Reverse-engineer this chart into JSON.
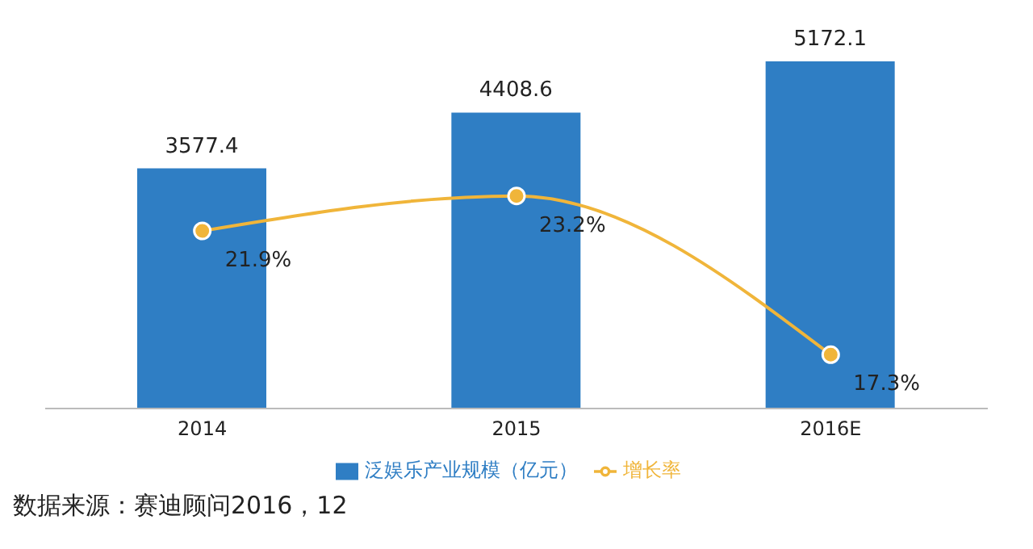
{
  "chart_data": {
    "type": "bar",
    "categories": [
      "2014",
      "2015",
      "2016E"
    ],
    "series": [
      {
        "name": "泛娱乐产业规模（亿元）",
        "color": "#2f7ec4",
        "values": [
          3577.4,
          4408.6,
          5172.1
        ],
        "value_labels": [
          "3577.4",
          "4408.6",
          "5172.1"
        ]
      },
      {
        "name": "增长率",
        "type": "line",
        "axis": "y2",
        "color": "#f0b53a",
        "values": [
          21.9,
          23.2,
          17.3
        ],
        "value_labels": [
          "21.9%",
          "23.2%",
          "17.3%"
        ]
      }
    ],
    "tick_labels": "x",
    "legend": "bottom",
    "marker": "circle",
    "annotations": [
      "数据来源：赛迪顾问2016，12"
    ]
  }
}
